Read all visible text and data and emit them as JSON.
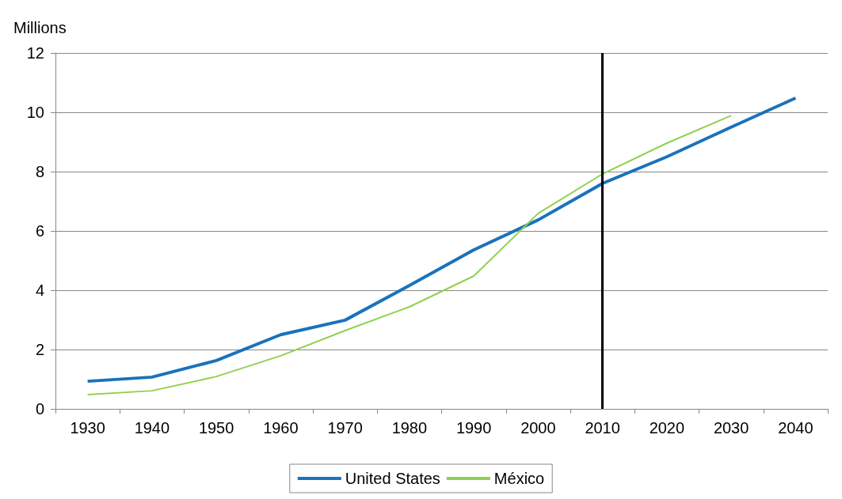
{
  "chart_data": {
    "type": "line",
    "ylabel": "Millions",
    "categories": [
      "1930",
      "1940",
      "1950",
      "1960",
      "1970",
      "1980",
      "1990",
      "2000",
      "2010",
      "2020",
      "2030",
      "2040"
    ],
    "series": [
      {
        "name": "United States",
        "color": "#1a72bb",
        "values": [
          0.93,
          1.07,
          1.63,
          2.5,
          2.99,
          4.16,
          5.36,
          6.37,
          7.6,
          8.5,
          9.5,
          10.48
        ]
      },
      {
        "name": "México",
        "color": "#92d050",
        "values": [
          0.48,
          0.61,
          1.09,
          1.79,
          2.64,
          3.44,
          4.48,
          6.59,
          7.92,
          8.96,
          9.89,
          null
        ]
      }
    ],
    "ylim": [
      0,
      12
    ],
    "yticks": [
      0,
      2,
      4,
      6,
      8,
      10,
      12
    ],
    "grid": "y",
    "legend": "bottom",
    "marker": "none",
    "line_style": "solid",
    "ref_lines": [
      {
        "axis": "x",
        "value": "2010",
        "label": null,
        "color": "#000000"
      }
    ]
  }
}
